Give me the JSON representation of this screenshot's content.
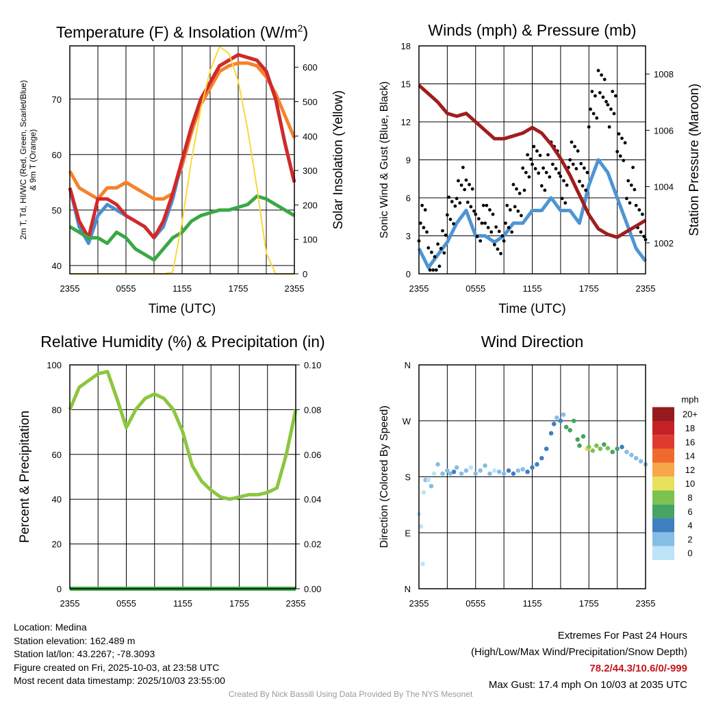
{
  "xticks": [
    "2355",
    "0555",
    "1155",
    "1755",
    "2355"
  ],
  "chart_data": [
    {
      "type": "line",
      "title": "Temperature (F) & Insolation (W/m²)",
      "xlabel": "Time (UTC)",
      "ylabel": "2m T, Td, HI/WC (Red, Green, Scarlet/Blue) & 9m T (Orange)",
      "ylabel_line1": "2m T, Tₙ, HI/WC (Red, Green, Scarlet/Blue)",
      "ylabel_line2": "& 9m T (Orange)",
      "y2label": "Solar Insolation (Yellow)",
      "ylim": [
        38.5,
        79.6
      ],
      "y2lim": [
        0,
        662
      ],
      "yticks": [
        40,
        50,
        60,
        70
      ],
      "y2ticks": [
        0,
        100,
        200,
        300,
        400,
        500,
        600
      ],
      "x_hours": [
        0,
        1,
        2,
        3,
        4,
        5,
        6,
        7,
        8,
        9,
        10,
        11,
        12,
        13,
        14,
        15,
        16,
        17,
        18,
        19,
        20,
        21,
        22,
        23,
        24
      ],
      "series": [
        {
          "name": "9m T",
          "color": "#f5822a",
          "axis": "left",
          "values": [
            57,
            54,
            53,
            52,
            54,
            54,
            55,
            54,
            53,
            52,
            52,
            53,
            58,
            64,
            69,
            72,
            75,
            76,
            76.5,
            76.5,
            76,
            74,
            71,
            67,
            63
          ]
        },
        {
          "name": "HI/WC",
          "color": "#4a8fd0",
          "axis": "left",
          "values": [
            54,
            47,
            44,
            49,
            51,
            50,
            49,
            48,
            47,
            45,
            47,
            52,
            59,
            65,
            70,
            73,
            76,
            77,
            78,
            77.5,
            77,
            75,
            70,
            62,
            55
          ]
        },
        {
          "name": "2m T",
          "color": "#d42828",
          "axis": "left",
          "values": [
            54,
            48,
            45,
            52,
            52,
            51,
            49,
            48,
            47,
            45,
            48,
            53,
            59,
            65,
            70,
            73,
            76,
            77,
            78,
            77.5,
            77,
            75,
            70,
            62,
            55
          ]
        },
        {
          "name": "2m Td",
          "color": "#3aa845",
          "axis": "left",
          "values": [
            47,
            46,
            45,
            45,
            44,
            46,
            45,
            43,
            42,
            41,
            43,
            45,
            46,
            48,
            49,
            49.5,
            50,
            50,
            50.5,
            51,
            52.5,
            52,
            51,
            50,
            49
          ]
        },
        {
          "name": "Solar Insolation",
          "color": "#f7d93a",
          "axis": "right",
          "values": [
            0,
            0,
            0,
            0,
            0,
            0,
            0,
            0,
            0,
            0,
            0,
            5,
            150,
            330,
            480,
            590,
            660,
            640,
            560,
            420,
            250,
            60,
            0,
            0,
            0
          ]
        }
      ]
    },
    {
      "type": "line+scatter",
      "title": "Winds (mph) & Pressure (mb)",
      "xlabel": "Time (UTC)",
      "ylabel": "Sonic Wind & Gust (Blue, Black)",
      "y2label": "Station Pressure (Maroon)",
      "ylim": [
        0,
        18
      ],
      "y2lim": [
        1000.9,
        1009
      ],
      "yticks": [
        0,
        3,
        6,
        9,
        12,
        15,
        18
      ],
      "y2ticks": [
        1002,
        1004,
        1006,
        1008
      ],
      "x_hours": [
        0,
        1,
        2,
        3,
        4,
        5,
        6,
        7,
        8,
        9,
        10,
        11,
        12,
        13,
        14,
        15,
        16,
        17,
        18,
        19,
        20,
        21,
        22,
        23,
        24
      ],
      "series": [
        {
          "name": "Sonic Wind",
          "color": "#4f95d3",
          "axis": "left",
          "values": [
            2,
            0.5,
            1.5,
            2.5,
            4,
            5,
            3,
            3,
            2.5,
            3,
            4,
            4,
            5,
            5,
            6,
            5,
            5,
            4,
            7,
            9,
            8,
            6,
            4,
            2,
            1
          ]
        },
        {
          "name": "Gust",
          "color": "#000000",
          "axis": "left",
          "kind": "scatter",
          "values": [
            4,
            1,
            2,
            5,
            7,
            6,
            4,
            4,
            3,
            4,
            6,
            8,
            9,
            8,
            9,
            7,
            9,
            8,
            13,
            15,
            13,
            10,
            7,
            4,
            2
          ]
        },
        {
          "name": "Station Pressure",
          "color": "#a01e1e",
          "axis": "right",
          "values": [
            1007.6,
            1007.3,
            1007,
            1006.6,
            1006.5,
            1006.6,
            1006.3,
            1006,
            1005.7,
            1005.7,
            1005.8,
            1005.9,
            1006.1,
            1005.9,
            1005.5,
            1005,
            1004.4,
            1003.7,
            1003,
            1002.5,
            1002.3,
            1002.2,
            1002.4,
            1002.6,
            1002.8
          ]
        }
      ]
    },
    {
      "type": "line",
      "title": "Relative Humidity (%) & Precipitation (in)",
      "ylabel": "Percent & Precipitation",
      "ylim": [
        0,
        100
      ],
      "y2lim": [
        0,
        0.1
      ],
      "yticks": [
        0,
        20,
        40,
        60,
        80,
        100
      ],
      "y2ticks": [
        "0.00",
        "0.02",
        "0.04",
        "0.06",
        "0.08",
        "0.10"
      ],
      "x_hours": [
        0,
        1,
        2,
        3,
        4,
        5,
        6,
        7,
        8,
        9,
        10,
        11,
        12,
        13,
        14,
        15,
        16,
        17,
        18,
        19,
        20,
        21,
        22,
        23,
        24
      ],
      "series": [
        {
          "name": "Relative Humidity",
          "color": "#8cc63f",
          "axis": "left",
          "values": [
            80,
            90,
            93,
            96,
            97,
            85,
            72,
            80,
            85,
            87,
            85,
            80,
            70,
            55,
            48,
            44,
            41,
            40,
            41,
            42,
            42,
            43,
            45,
            60,
            80
          ]
        },
        {
          "name": "Precipitation",
          "color": "#3aa845",
          "axis": "right",
          "values": [
            0,
            0,
            0,
            0,
            0,
            0,
            0,
            0,
            0,
            0,
            0,
            0,
            0,
            0,
            0,
            0,
            0,
            0,
            0,
            0,
            0,
            0,
            0,
            0,
            0
          ]
        }
      ]
    },
    {
      "type": "scatter",
      "title": "Wind Direction",
      "ylabel": "Direction (Colored By Speed)",
      "yticks": [
        "N",
        "E",
        "S",
        "W",
        "N"
      ],
      "ylim": [
        0,
        360
      ],
      "colorbar": {
        "title": "mph",
        "labels": [
          "0",
          "2",
          "4",
          "6",
          "8",
          "10",
          "12",
          "14",
          "16",
          "18",
          "20+"
        ],
        "colors": [
          "#bde3f7",
          "#86bde6",
          "#3f7fbf",
          "#45a463",
          "#7cc24e",
          "#e8e15c",
          "#f6a74a",
          "#ef6a2c",
          "#e03a2f",
          "#c42127",
          "#951b1e"
        ]
      },
      "points": [
        [
          0,
          120,
          1
        ],
        [
          0.2,
          100,
          1
        ],
        [
          0.4,
          40,
          1
        ],
        [
          0.5,
          155,
          1
        ],
        [
          0.7,
          175,
          2
        ],
        [
          1,
          175,
          1
        ],
        [
          1.3,
          165,
          2
        ],
        [
          1.6,
          185,
          1
        ],
        [
          2,
          200,
          2
        ],
        [
          2.5,
          185,
          2
        ],
        [
          3,
          190,
          3
        ],
        [
          3.3,
          185,
          3
        ],
        [
          3.7,
          188,
          4
        ],
        [
          4,
          195,
          3
        ],
        [
          4.5,
          185,
          3
        ],
        [
          5,
          190,
          2
        ],
        [
          5.5,
          195,
          1
        ],
        [
          6,
          185,
          3
        ],
        [
          6.5,
          190,
          3
        ],
        [
          7,
          198,
          2
        ],
        [
          7.5,
          185,
          2
        ],
        [
          8,
          190,
          1
        ],
        [
          8.5,
          188,
          3
        ],
        [
          9,
          185,
          2
        ],
        [
          9.5,
          190,
          4
        ],
        [
          10,
          185,
          4
        ],
        [
          10.5,
          190,
          3
        ],
        [
          11,
          192,
          3
        ],
        [
          11.5,
          188,
          4
        ],
        [
          12,
          195,
          4
        ],
        [
          12.5,
          200,
          5
        ],
        [
          13,
          210,
          4
        ],
        [
          13.5,
          225,
          5
        ],
        [
          14,
          250,
          5
        ],
        [
          14.3,
          265,
          4
        ],
        [
          14.6,
          275,
          3
        ],
        [
          15,
          270,
          4
        ],
        [
          15.3,
          280,
          2
        ],
        [
          15.6,
          260,
          6
        ],
        [
          16,
          255,
          6
        ],
        [
          16.4,
          270,
          7
        ],
        [
          16.8,
          240,
          6
        ],
        [
          17,
          230,
          7
        ],
        [
          17.4,
          245,
          6
        ],
        [
          17.8,
          225,
          10
        ],
        [
          18,
          228,
          8
        ],
        [
          18.4,
          222,
          9
        ],
        [
          18.8,
          230,
          8
        ],
        [
          19.2,
          225,
          9
        ],
        [
          19.6,
          232,
          7
        ],
        [
          20,
          226,
          8
        ],
        [
          20.5,
          220,
          6
        ],
        [
          21,
          225,
          7
        ],
        [
          21.5,
          228,
          4
        ],
        [
          22,
          220,
          3
        ],
        [
          22.5,
          215,
          2
        ],
        [
          23,
          210,
          2
        ],
        [
          23.5,
          205,
          3
        ],
        [
          24,
          200,
          2
        ]
      ]
    }
  ],
  "info": {
    "location": "Location: Medina",
    "elevation": "Station elevation: 162.489 m",
    "latlon": "Station lat/lon: 43.2267; -78.3093",
    "created": "Figure created on Fri, 2025-10-03, at 23:58 UTC",
    "recent": "Most recent data timestamp: 2025/10/03 23:55:00"
  },
  "extremes": {
    "title": "Extremes For Past 24 Hours",
    "subtitle": "(High/Low/Max Wind/Precipitation/Snow Depth)",
    "values": "78.2/44.3/10.6/0/-999",
    "gust": "Max Gust: 17.4 mph On 10/03 at 2035 UTC"
  },
  "credit": "Created By Nick Bassill Using Data Provided By The NYS Mesonet"
}
